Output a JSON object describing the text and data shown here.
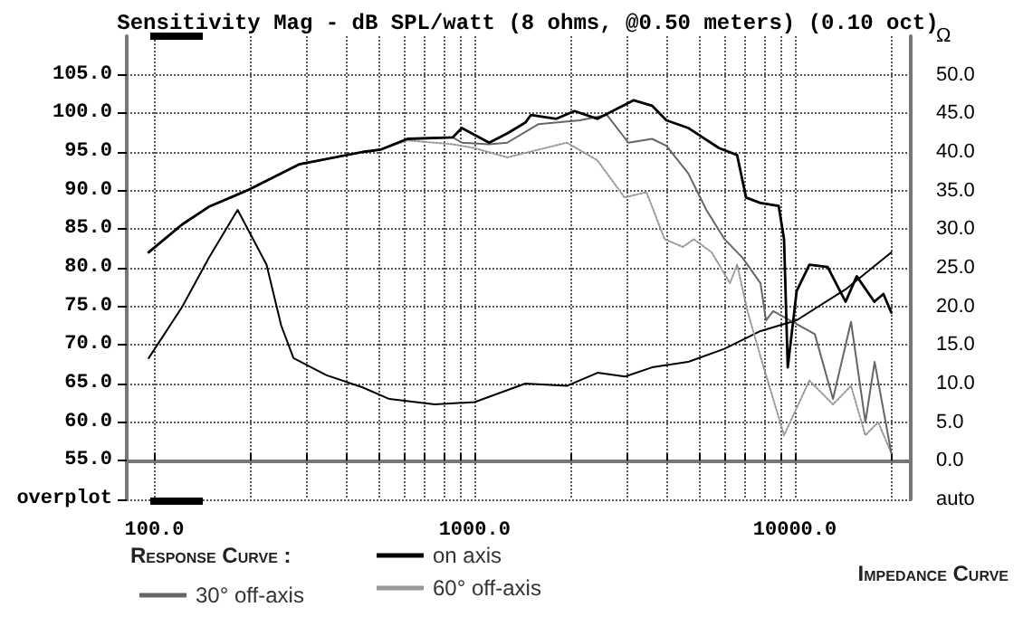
{
  "chart_data": {
    "type": "line",
    "title": "Sensitivity Mag - dB SPL/watt (8 ohms, @0.50 meters) (0.10 oct)",
    "legend_title": "Response Curve :",
    "legend": "bottom",
    "grid": true,
    "log": "x",
    "marker": "none",
    "xlim": [
      82,
      23000
    ],
    "xticks": [
      {
        "value": 100,
        "label": "100.0"
      },
      {
        "value": 200,
        "label": null
      },
      {
        "value": 300,
        "label": null
      },
      {
        "value": 400,
        "label": null
      },
      {
        "value": 500,
        "label": null
      },
      {
        "value": 600,
        "label": null
      },
      {
        "value": 700,
        "label": null
      },
      {
        "value": 800,
        "label": null
      },
      {
        "value": 900,
        "label": null
      },
      {
        "value": 1000,
        "label": "1000.0"
      },
      {
        "value": 2000,
        "label": null
      },
      {
        "value": 3000,
        "label": null
      },
      {
        "value": 4000,
        "label": null
      },
      {
        "value": 5000,
        "label": null
      },
      {
        "value": 6000,
        "label": null
      },
      {
        "value": 7000,
        "label": null
      },
      {
        "value": 8000,
        "label": null
      },
      {
        "value": 9000,
        "label": null
      },
      {
        "value": 10000,
        "label": "10000.0"
      },
      {
        "value": 20000,
        "label": null
      }
    ],
    "ylim": [
      50,
      110
    ],
    "yticks": [
      {
        "value": 50,
        "label": "overplot"
      },
      {
        "value": 55,
        "label": "55.0"
      },
      {
        "value": 60,
        "label": "60.0"
      },
      {
        "value": 65,
        "label": "65.0"
      },
      {
        "value": 70,
        "label": "70.0"
      },
      {
        "value": 75,
        "label": "75.0"
      },
      {
        "value": 80,
        "label": "80.0"
      },
      {
        "value": 85,
        "label": "85.0"
      },
      {
        "value": 90,
        "label": "90.0"
      },
      {
        "value": 95,
        "label": "95.0"
      },
      {
        "value": 100,
        "label": "100.0"
      },
      {
        "value": 105,
        "label": "105.0"
      }
    ],
    "y2lim": [
      -5,
      55
    ],
    "y2ticks": [
      {
        "value": -5,
        "label": "auto"
      },
      {
        "value": 0,
        "label": "0.0"
      },
      {
        "value": 5,
        "label": "5.0"
      },
      {
        "value": 10,
        "label": "10.0"
      },
      {
        "value": 15,
        "label": "15.0"
      },
      {
        "value": 20,
        "label": "20.0"
      },
      {
        "value": 25,
        "label": "25.0"
      },
      {
        "value": 30,
        "label": "30.0"
      },
      {
        "value": 35,
        "label": "35.0"
      },
      {
        "value": 40,
        "label": "40.0"
      },
      {
        "value": 45,
        "label": "45.0"
      },
      {
        "value": 50,
        "label": "50.0"
      },
      {
        "value": 55,
        "label": "Ω"
      }
    ],
    "annotations": [
      "Impedance Curve"
    ],
    "series": [
      {
        "name": "on axis",
        "color": "#000000",
        "line_style": "solid",
        "x": [
          96,
          122,
          148,
          197,
          283,
          447,
          508,
          617,
          855,
          912,
          1110,
          1264,
          1440,
          1500,
          1800,
          2050,
          2420,
          3140,
          3580,
          3970,
          4650,
          5800,
          6600,
          7040,
          7810,
          8900,
          9250,
          9500,
          10130,
          11100,
          12650,
          14400,
          15600,
          17700,
          18900,
          20000
        ],
        "values": [
          82.0,
          85.6,
          87.9,
          90.1,
          93.4,
          95.0,
          95.3,
          96.7,
          96.9,
          98.1,
          96.2,
          97.4,
          98.8,
          99.8,
          99.3,
          100.3,
          99.3,
          101.7,
          101.0,
          99.1,
          98.1,
          95.5,
          94.6,
          89.1,
          88.4,
          88.0,
          83.7,
          67.1,
          77.0,
          80.4,
          80.1,
          75.6,
          78.9,
          75.6,
          76.6,
          74.2
        ]
      },
      {
        "name": "30° off-axis",
        "color": "#666666",
        "line_style": "solid",
        "x": [
          96,
          122,
          148,
          197,
          283,
          447,
          508,
          617,
          855,
          912,
          1110,
          1264,
          1580,
          2130,
          2590,
          3020,
          3580,
          3970,
          4650,
          5290,
          6030,
          6860,
          7810,
          8125,
          8555,
          11540,
          13150,
          14970,
          16600,
          17740,
          20000
        ],
        "values": [
          82.0,
          85.6,
          87.9,
          90.1,
          93.4,
          95.0,
          95.3,
          96.7,
          96.9,
          96.2,
          96.0,
          96.2,
          98.6,
          99.1,
          99.8,
          96.2,
          96.7,
          95.8,
          92.2,
          87.5,
          83.7,
          81.3,
          78.0,
          73.2,
          74.4,
          71.4,
          63.0,
          73.0,
          60.0,
          67.8,
          56.0
        ]
      },
      {
        "name": "60° off-axis",
        "color": "#999999",
        "line_style": "dotted",
        "x": [
          96,
          122,
          148,
          197,
          283,
          447,
          508,
          617,
          855,
          1000,
          1264,
          1940,
          2420,
          2940,
          3440,
          3920,
          4470,
          4830,
          5500,
          6270,
          6600,
          7130,
          7810,
          9250,
          11100,
          13150,
          14970,
          16600,
          18200,
          20000
        ],
        "values": [
          82.0,
          85.6,
          87.9,
          90.1,
          93.4,
          95.0,
          95.3,
          96.5,
          96.0,
          95.5,
          94.3,
          96.2,
          93.9,
          89.1,
          89.8,
          83.7,
          82.7,
          83.7,
          82.0,
          78.0,
          80.4,
          74.2,
          68.5,
          58.3,
          65.4,
          62.3,
          64.7,
          58.3,
          60.0,
          56.0
        ]
      },
      {
        "color": "#000000",
        "line_style": "solid",
        "axis": "y2",
        "x": [
          96,
          122,
          148,
          182,
          224,
          249,
          272,
          344,
          447,
          542,
          751,
          1000,
          1440,
          1940,
          2420,
          2950,
          3580,
          4640,
          6020,
          7810,
          10130,
          14500,
          20000
        ],
        "values": [
          13.3,
          19.9,
          26.3,
          32.5,
          25.4,
          17.5,
          13.3,
          11.1,
          9.5,
          8.0,
          7.3,
          7.6,
          10.0,
          9.7,
          11.4,
          10.9,
          12.1,
          12.8,
          14.5,
          16.8,
          18.2,
          22.3,
          27.0
        ]
      }
    ]
  }
}
